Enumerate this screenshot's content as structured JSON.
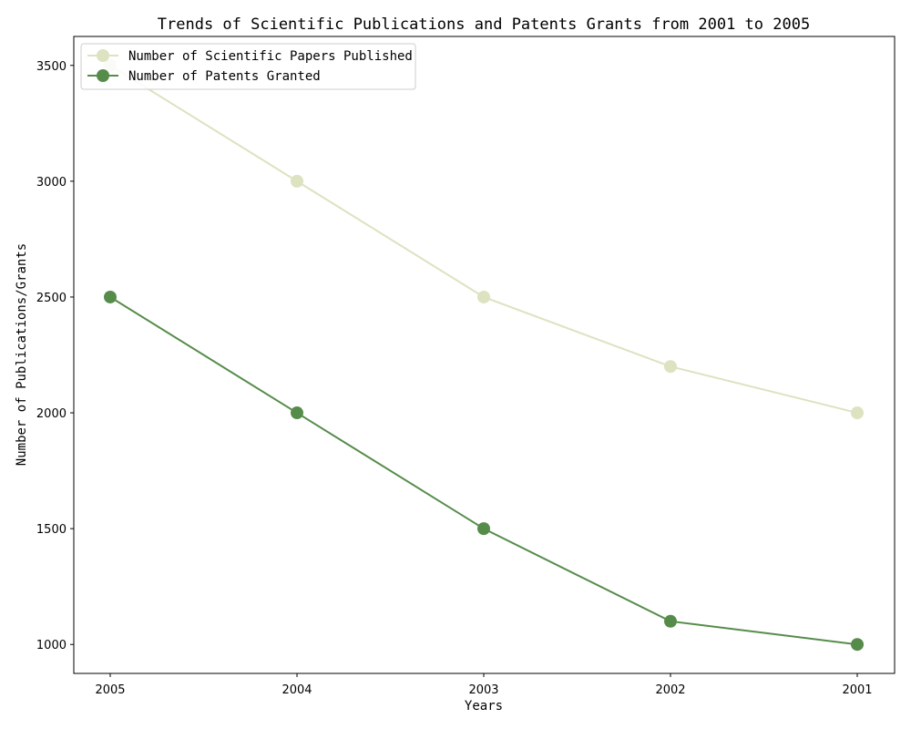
{
  "chart_data": {
    "type": "line",
    "title": "Trends of Scientific Publications and Patents Grants from 2001 to 2005",
    "xlabel": "Years",
    "ylabel": "Number of Publications/Grants",
    "categories": [
      "2005",
      "2004",
      "2003",
      "2002",
      "2001"
    ],
    "yticks": [
      1000,
      1500,
      2000,
      2500,
      3000,
      3500
    ],
    "ylim": [
      875,
      3625
    ],
    "grid": false,
    "legend_position": "top-left",
    "series": [
      {
        "name": "Number of Scientific Papers Published",
        "values": [
          3500,
          3000,
          2500,
          2200,
          2000
        ],
        "color": "#dde2c0"
      },
      {
        "name": "Number of Patents Granted",
        "values": [
          2500,
          2000,
          1500,
          1100,
          1000
        ],
        "color": "#568c4a"
      }
    ]
  }
}
